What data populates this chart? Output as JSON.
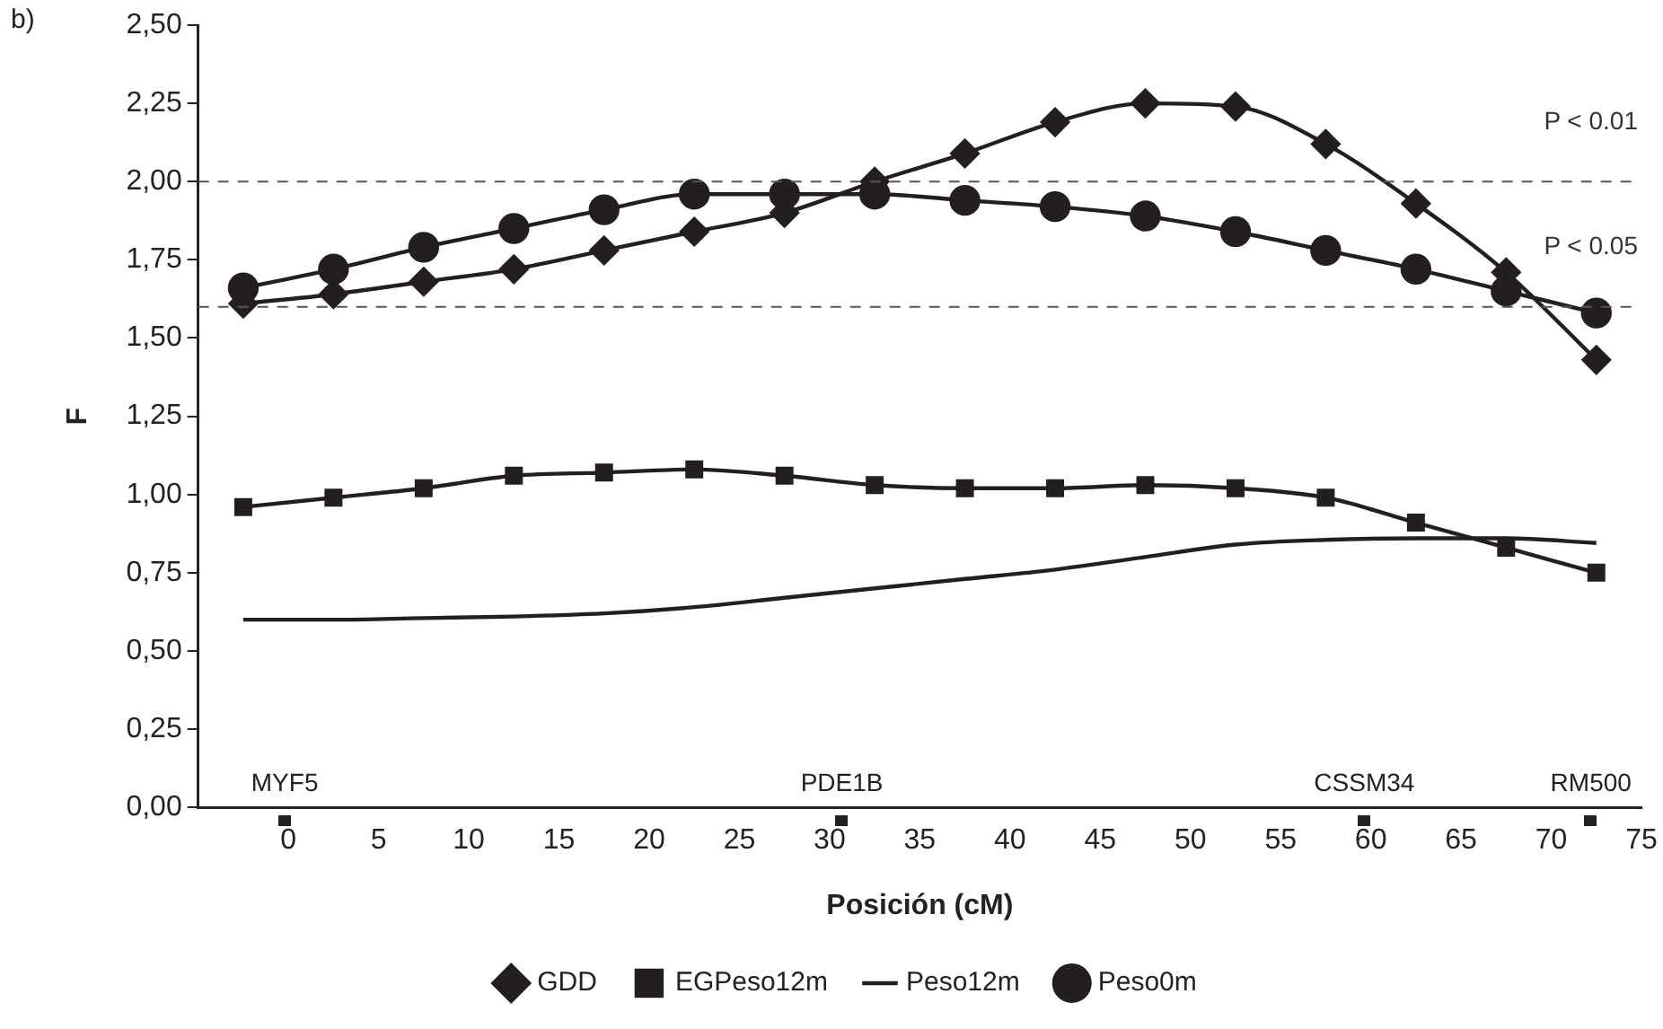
{
  "chart_data": {
    "type": "line",
    "xlabel": "Posición (cM)",
    "ylabel": "F",
    "annotations": [
      "b)",
      "MYF5",
      "PDE1B",
      "CSSM34",
      "RM500"
    ],
    "x": [
      -2.5,
      2.5,
      7.5,
      12.5,
      17.5,
      22.5,
      27.5,
      32.5,
      37.5,
      42.5,
      47.5,
      52.5,
      57.5,
      62.5,
      67.5,
      72.5
    ],
    "series": [
      {
        "name": "GDD",
        "color": "#231f20",
        "marker": "diamond",
        "values": [
          1.61,
          1.64,
          1.68,
          1.72,
          1.78,
          1.84,
          1.9,
          2.0,
          2.09,
          2.19,
          2.25,
          2.24,
          2.12,
          1.93,
          1.71,
          1.43
        ]
      },
      {
        "name": "EGPeso12m",
        "color": "#231f20",
        "marker": "square",
        "values": [
          0.96,
          0.99,
          1.02,
          1.06,
          1.07,
          1.08,
          1.06,
          1.03,
          1.02,
          1.02,
          1.03,
          1.02,
          0.99,
          0.91,
          0.83,
          0.75
        ]
      },
      {
        "name": "Peso12m",
        "color": "#231f20",
        "marker": "none",
        "values": [
          0.6,
          0.6,
          0.605,
          0.61,
          0.62,
          0.64,
          0.67,
          0.7,
          0.73,
          0.76,
          0.8,
          0.84,
          0.855,
          0.86,
          0.86,
          0.845
        ]
      },
      {
        "name": "Peso0m",
        "color": "#231f20",
        "marker": "circle",
        "values": [
          1.66,
          1.72,
          1.79,
          1.85,
          1.91,
          1.96,
          1.96,
          1.96,
          1.94,
          1.92,
          1.89,
          1.84,
          1.78,
          1.72,
          1.65,
          1.58
        ]
      }
    ],
    "xlim": [
      -5,
      75
    ],
    "xticks": [
      0,
      5,
      10,
      15,
      20,
      25,
      30,
      35,
      40,
      45,
      50,
      55,
      60,
      65,
      70,
      75
    ],
    "ylim": [
      0,
      2.5
    ],
    "yticks": [
      {
        "value": 0,
        "label": "0,00"
      },
      {
        "value": 0.25,
        "label": "0,25"
      },
      {
        "value": 0.5,
        "label": "0,50"
      },
      {
        "value": 0.75,
        "label": "0,75"
      },
      {
        "value": 1,
        "label": "1,00"
      },
      {
        "value": 1.25,
        "label": "1,25"
      },
      {
        "value": 1.5,
        "label": "1,50"
      },
      {
        "value": 1.75,
        "label": "1,75"
      },
      {
        "value": 2,
        "label": "2,00"
      },
      {
        "value": 2.25,
        "label": "2,25"
      },
      {
        "value": 2.5,
        "label": "2,50"
      }
    ],
    "ref_lines": [
      {
        "axis": "y",
        "value": 2.0,
        "label": "P < 0.01",
        "color": "#555555",
        "line_style": "dashed"
      },
      {
        "axis": "y",
        "value": 1.6,
        "label": "P < 0.05",
        "color": "#555555",
        "line_style": "dashed"
      }
    ],
    "grid": false,
    "legend": "bottom"
  }
}
